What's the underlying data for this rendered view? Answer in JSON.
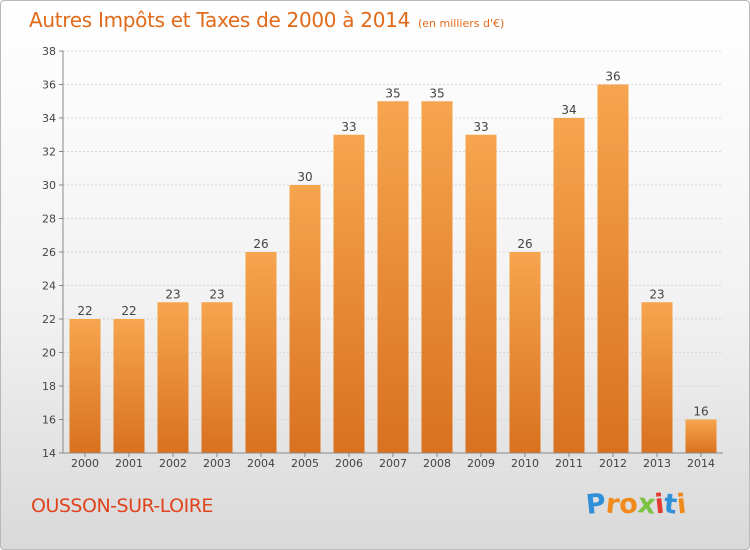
{
  "chart_data": {
    "type": "bar",
    "title": "Autres Impôts et Taxes de 2000 à 2014",
    "subtitle": "(en milliers d'€)",
    "categories": [
      "2000",
      "2001",
      "2002",
      "2003",
      "2004",
      "2005",
      "2006",
      "2007",
      "2008",
      "2009",
      "2010",
      "2011",
      "2012",
      "2013",
      "2014"
    ],
    "values": [
      22,
      22,
      23,
      23,
      26,
      30,
      33,
      35,
      35,
      33,
      26,
      34,
      36,
      23,
      16
    ],
    "ylim": [
      14,
      38
    ],
    "yticks": [
      14,
      16,
      18,
      20,
      22,
      24,
      26,
      28,
      30,
      32,
      34,
      36,
      38
    ],
    "grid": true,
    "bar_color_top": "#f6a54e",
    "bar_color_bottom": "#d9711f"
  },
  "location": "OUSSON-SUR-LOIRE",
  "logo": {
    "letters": [
      "P",
      "r",
      "o",
      "x",
      "i",
      "t",
      "i"
    ],
    "colors": [
      "#2f8fd8",
      "#f08a1c",
      "#f08a1c",
      "#7cc242",
      "#e33b2e",
      "#2f8fd8",
      "#f08a1c"
    ]
  }
}
